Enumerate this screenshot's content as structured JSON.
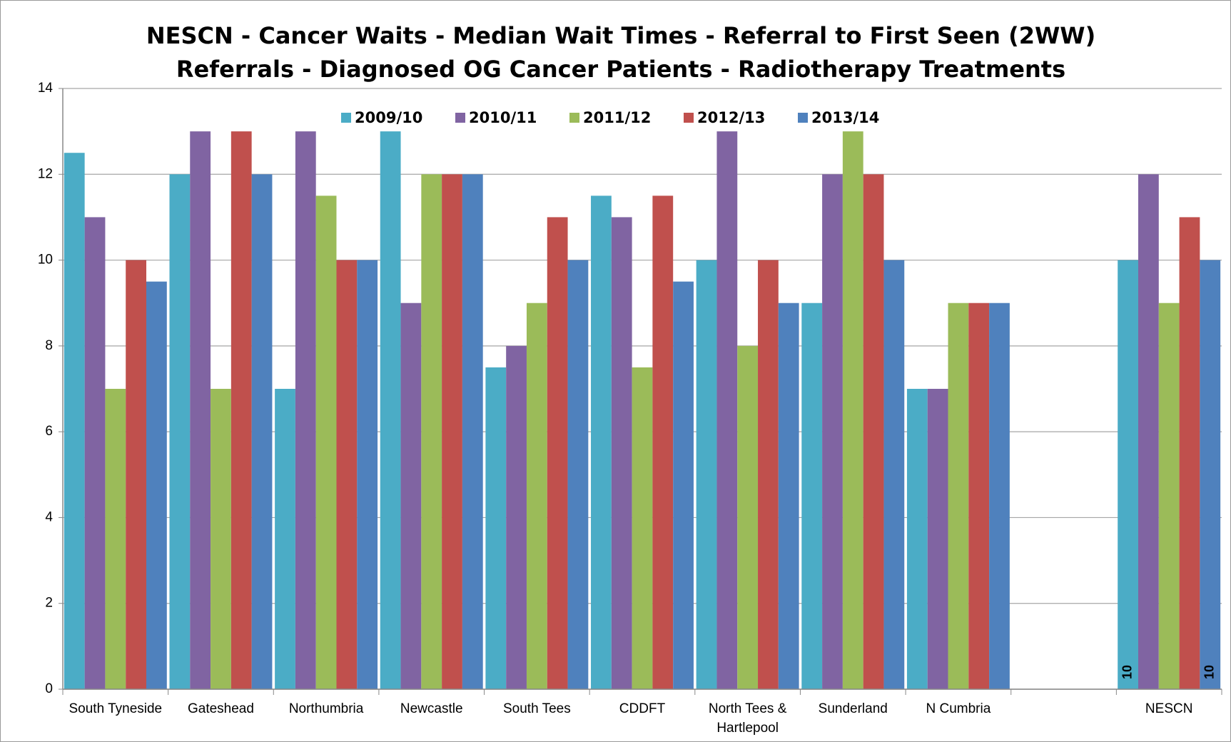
{
  "chart_data": {
    "type": "bar",
    "title": [
      "NESCN - Cancer Waits - Median Wait Times - Referral to First Seen (2WW)",
      "Referrals  - Diagnosed OG Cancer Patients - Radiotherapy Treatments"
    ],
    "categories": [
      "South Tyneside",
      "Gateshead",
      "Northumbria",
      "Newcastle",
      "South Tees",
      "CDDFT",
      "North Tees & Hartlepool",
      "Sunderland",
      "N Cumbria",
      null,
      "NESCN"
    ],
    "series": [
      {
        "name": "2009/10",
        "color": "#4bacc6",
        "values": [
          12.5,
          12,
          7,
          13,
          7.5,
          11.5,
          10,
          9,
          7,
          null,
          10
        ],
        "labels": [
          10
        ]
      },
      {
        "name": "2010/11",
        "color": "#8064a2",
        "values": [
          11,
          13,
          13,
          9,
          8,
          11,
          13,
          12,
          7,
          null,
          12
        ]
      },
      {
        "name": "2011/12",
        "color": "#9bbb59",
        "values": [
          7,
          7,
          11.5,
          12,
          9,
          7.5,
          8,
          13,
          9,
          null,
          9
        ]
      },
      {
        "name": "2012/13",
        "color": "#c0504d",
        "values": [
          10,
          13,
          10,
          12,
          11,
          11.5,
          10,
          12,
          9,
          null,
          11
        ]
      },
      {
        "name": "2013/14",
        "color": "#4f81bd",
        "values": [
          9.5,
          12,
          10,
          12,
          10,
          9.5,
          9,
          10,
          9,
          null,
          10
        ],
        "labels": [
          10
        ]
      }
    ],
    "ylim": [
      0,
      14
    ],
    "yticks": [
      0,
      2,
      4,
      6,
      8,
      10,
      12,
      14
    ],
    "grid": true,
    "legend": "top"
  }
}
